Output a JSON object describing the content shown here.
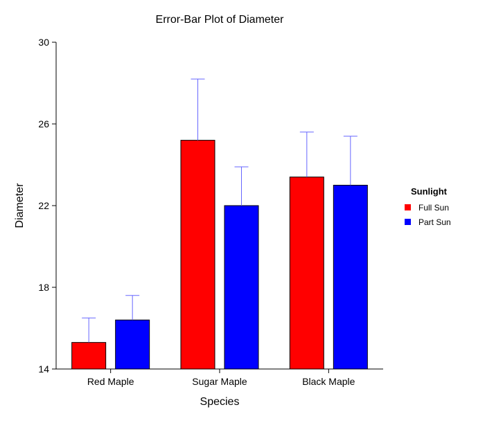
{
  "chart_data": {
    "type": "bar",
    "title": "Error-Bar Plot of Diameter",
    "xlabel": "Species",
    "ylabel": "Diameter",
    "categories": [
      "Red Maple",
      "Sugar Maple",
      "Black Maple"
    ],
    "ylim": [
      14,
      30
    ],
    "yticks": [
      14,
      18,
      22,
      26,
      30
    ],
    "grid": false,
    "legend": {
      "title": "Sunlight",
      "position": "right"
    },
    "series": [
      {
        "name": "Full Sun",
        "color": "#ff0000",
        "values": [
          15.3,
          25.2,
          23.4
        ],
        "error_upper": [
          16.5,
          28.2,
          25.6
        ],
        "error_color": "#6666ff"
      },
      {
        "name": "Part Sun",
        "color": "#0000ff",
        "values": [
          16.4,
          22.0,
          23.0
        ],
        "error_upper": [
          17.6,
          23.9,
          25.4
        ],
        "error_color": "#6666ff"
      }
    ]
  }
}
